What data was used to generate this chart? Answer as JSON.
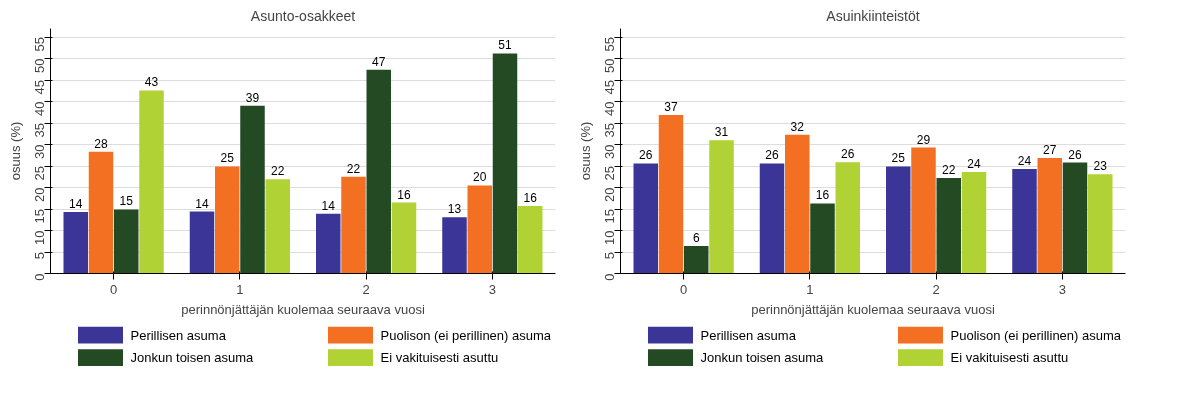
{
  "chart_data": [
    {
      "type": "bar",
      "title": "Asunto-osakkeet",
      "xlabel": "perinnönjättäjän kuolemaa seuraava vuosi",
      "ylabel": "osuus (%)",
      "categories": [
        "0",
        "1",
        "2",
        "3"
      ],
      "ylim": [
        0,
        57
      ],
      "yticks": [
        0,
        5,
        10,
        15,
        20,
        25,
        30,
        35,
        40,
        45,
        50,
        55
      ],
      "grid": "y",
      "legend": "bottom",
      "series": [
        {
          "name": "Perillisen asuma",
          "color": "#3a3597",
          "values": [
            14.3,
            14.4,
            13.9,
            13.1
          ],
          "value_labels": [
            "14",
            "14",
            "14",
            "13"
          ]
        },
        {
          "name": "Puolison (ei perillinen) asuma",
          "color": "#f36f21",
          "values": [
            28.3,
            24.9,
            22.5,
            20.5
          ],
          "value_labels": [
            "28",
            "25",
            "22",
            "20"
          ]
        },
        {
          "name": "Jonkun toisen asuma",
          "color": "#244a24",
          "values": [
            14.9,
            39.0,
            47.4,
            51.2
          ],
          "value_labels": [
            "15",
            "39",
            "47",
            "51"
          ]
        },
        {
          "name": "Ei vakituisesti asuttu",
          "color": "#b0d235",
          "values": [
            42.6,
            21.9,
            16.5,
            15.7
          ],
          "value_labels": [
            "43",
            "22",
            "16",
            "16"
          ]
        }
      ]
    },
    {
      "type": "bar",
      "title": "Asuinkiinteistöt",
      "xlabel": "perinnönjättäjän kuolemaa seuraava vuosi",
      "ylabel": "osuus (%)",
      "categories": [
        "0",
        "1",
        "2",
        "3"
      ],
      "ylim": [
        0,
        57
      ],
      "yticks": [
        0,
        5,
        10,
        15,
        20,
        25,
        30,
        35,
        40,
        45,
        50,
        55
      ],
      "grid": "y",
      "legend": "bottom",
      "series": [
        {
          "name": "Perillisen asuma",
          "color": "#3a3597",
          "values": [
            25.6,
            25.6,
            24.9,
            24.3
          ],
          "value_labels": [
            "26",
            "26",
            "25",
            "24"
          ]
        },
        {
          "name": "Puolison (ei perillinen) asuma",
          "color": "#f36f21",
          "values": [
            36.9,
            32.3,
            29.3,
            26.9
          ],
          "value_labels": [
            "37",
            "32",
            "29",
            "27"
          ]
        },
        {
          "name": "Jonkun toisen asuma",
          "color": "#244a24",
          "values": [
            6.4,
            16.3,
            22.2,
            25.8
          ],
          "value_labels": [
            "6",
            "16",
            "22",
            "26"
          ]
        },
        {
          "name": "Ei vakituisesti asuttu",
          "color": "#b0d235",
          "values": [
            31.0,
            25.9,
            23.6,
            23.1
          ],
          "value_labels": [
            "31",
            "26",
            "24",
            "23"
          ]
        }
      ]
    }
  ]
}
